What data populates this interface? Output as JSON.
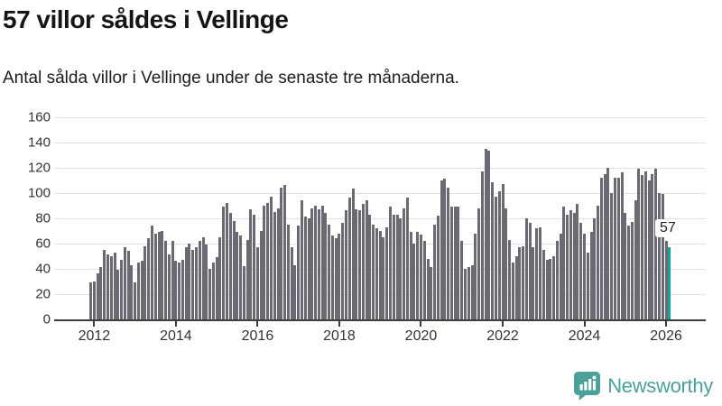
{
  "header": {
    "title": "57 villor såldes i Vellinge",
    "subtitle": "Antal sålda villor i Vellinge under de senaste tre månaderna."
  },
  "footer": {
    "brand": "Newsworthy"
  },
  "colors": {
    "bar": "#696a72",
    "highlight": "#13a39b",
    "brand": "#4ba19a",
    "grid": "#e2e2e2",
    "axis": "#3d3d3d",
    "label_text": "#333333"
  },
  "chart_data": {
    "type": "bar",
    "title": "57 villor såldes i Vellinge",
    "subtitle": "Antal sålda villor i Vellinge under de senaste tre månaderna.",
    "xlabel": "",
    "ylabel": "",
    "ylim": [
      0,
      160
    ],
    "yticks": [
      0,
      20,
      40,
      60,
      80,
      100,
      120,
      140,
      160
    ],
    "xticks": [
      2012,
      2014,
      2016,
      2018,
      2020,
      2022,
      2024,
      2026
    ],
    "grid": true,
    "legend": false,
    "x_start_month": "2011-12",
    "x_end_month": "2026-02",
    "values": [
      29,
      30,
      36,
      41,
      55,
      51,
      50,
      53,
      39,
      47,
      57,
      54,
      43,
      29,
      45,
      46,
      58,
      64,
      74,
      68,
      69,
      70,
      62,
      51,
      62,
      46,
      45,
      47,
      57,
      60,
      55,
      57,
      62,
      65,
      59,
      40,
      45,
      49,
      65,
      89,
      92,
      84,
      78,
      69,
      66,
      42,
      63,
      87,
      83,
      57,
      70,
      90,
      92,
      97,
      85,
      88,
      104,
      106,
      75,
      57,
      43,
      74,
      94,
      81,
      80,
      88,
      90,
      87,
      90,
      84,
      75,
      66,
      64,
      68,
      76,
      86,
      96,
      103,
      87,
      86,
      91,
      94,
      83,
      75,
      72,
      70,
      65,
      73,
      89,
      83,
      83,
      80,
      88,
      96,
      69,
      60,
      69,
      67,
      62,
      48,
      41,
      75,
      82,
      110,
      111,
      104,
      89,
      89,
      89,
      62,
      40,
      41,
      43,
      68,
      88,
      117,
      135,
      133,
      108,
      97,
      101,
      107,
      88,
      63,
      45,
      50,
      57,
      58,
      80,
      76,
      57,
      72,
      73,
      55,
      47,
      48,
      50,
      62,
      68,
      89,
      83,
      86,
      84,
      91,
      76,
      68,
      53,
      69,
      80,
      90,
      112,
      115,
      120,
      100,
      112,
      112,
      116,
      84,
      74,
      77,
      94,
      119,
      114,
      117,
      110,
      115,
      119,
      100,
      99,
      62,
      57
    ],
    "highlight": {
      "index": 170,
      "value": 57,
      "label": "57"
    }
  }
}
